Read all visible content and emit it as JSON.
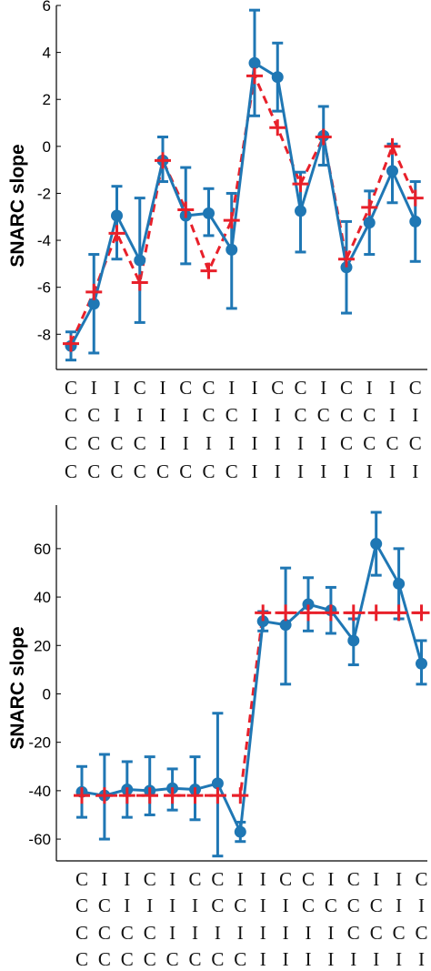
{
  "chart_data": [
    {
      "type": "line",
      "ylabel": "SNARC slope",
      "xlabel": "",
      "ylim": [
        -9.5,
        6
      ],
      "yticks": [
        6,
        4,
        2,
        0,
        -2,
        -4,
        -6,
        -8
      ],
      "x": [
        1,
        2,
        3,
        4,
        5,
        6,
        7,
        8,
        9,
        10,
        11,
        12,
        13,
        14,
        15,
        16
      ],
      "category_rows": [
        [
          "C",
          "I",
          "I",
          "C",
          "I",
          "C",
          "C",
          "I",
          "I",
          "C",
          "C",
          "I",
          "C",
          "I",
          "I",
          "C"
        ],
        [
          "C",
          "C",
          "I",
          "I",
          "I",
          "I",
          "C",
          "C",
          "I",
          "I",
          "C",
          "C",
          "C",
          "C",
          "I",
          "I"
        ],
        [
          "C",
          "C",
          "C",
          "C",
          "I",
          "I",
          "I",
          "I",
          "I",
          "I",
          "I",
          "I",
          "C",
          "C",
          "C",
          "C"
        ],
        [
          "C",
          "C",
          "C",
          "C",
          "C",
          "C",
          "C",
          "C",
          "I",
          "I",
          "I",
          "I",
          "I",
          "I",
          "I",
          "I"
        ]
      ],
      "series": [
        {
          "kind": "observed",
          "color": "#1f77b4",
          "style": "solid line with circle markers and error bars",
          "values": [
            -8.5,
            -6.7,
            -2.95,
            -4.85,
            -0.6,
            -2.95,
            -2.85,
            -4.4,
            3.55,
            2.95,
            -2.75,
            0.45,
            -5.15,
            -3.25,
            -1.05,
            -3.2
          ],
          "error_low": [
            -9.1,
            -8.8,
            -4.8,
            -7.5,
            -1.5,
            -5.0,
            -3.8,
            -6.9,
            1.3,
            1.5,
            -4.5,
            -0.8,
            -7.1,
            -4.6,
            -2.4,
            -4.9
          ],
          "error_high": [
            -7.9,
            -4.6,
            -1.7,
            -2.2,
            0.4,
            -0.9,
            -1.8,
            -2.0,
            5.8,
            4.4,
            -1.1,
            1.7,
            -3.2,
            -1.9,
            0.1,
            -1.5
          ]
        },
        {
          "kind": "model",
          "color": "#e8202a",
          "style": "dashed line with plus markers",
          "values": [
            -8.4,
            -6.2,
            -3.7,
            -5.8,
            -0.6,
            -2.7,
            -5.3,
            -3.15,
            3.0,
            0.8,
            -1.6,
            0.4,
            -4.8,
            -2.6,
            0.0,
            -2.2
          ]
        }
      ]
    },
    {
      "type": "line",
      "ylabel": "SNARC slope",
      "xlabel": "",
      "ylim": [
        -69,
        78
      ],
      "yticks": [
        60,
        40,
        20,
        0,
        -20,
        -40,
        -60
      ],
      "x": [
        1,
        2,
        3,
        4,
        5,
        6,
        7,
        8,
        9,
        10,
        11,
        12,
        13,
        14,
        15,
        16
      ],
      "category_rows": [
        [
          "C",
          "I",
          "I",
          "C",
          "I",
          "C",
          "C",
          "I",
          "I",
          "C",
          "C",
          "I",
          "C",
          "I",
          "I",
          "C"
        ],
        [
          "C",
          "C",
          "I",
          "I",
          "I",
          "I",
          "C",
          "C",
          "I",
          "I",
          "C",
          "C",
          "C",
          "C",
          "I",
          "I"
        ],
        [
          "C",
          "C",
          "C",
          "C",
          "I",
          "I",
          "I",
          "I",
          "I",
          "I",
          "I",
          "I",
          "C",
          "C",
          "C",
          "C"
        ],
        [
          "C",
          "C",
          "C",
          "C",
          "C",
          "C",
          "C",
          "C",
          "I",
          "I",
          "I",
          "I",
          "I",
          "I",
          "I",
          "I"
        ]
      ],
      "series": [
        {
          "kind": "observed",
          "color": "#1f77b4",
          "style": "solid line with circle markers and error bars",
          "values": [
            -40.5,
            -42,
            -39.5,
            -40,
            -39,
            -39.5,
            -37,
            -57,
            30,
            28.5,
            37,
            34.5,
            22,
            62,
            45.5,
            12.5
          ],
          "error_low": [
            -51,
            -60,
            -51,
            -50,
            -48,
            -52,
            -67,
            -61,
            26,
            4,
            26,
            25,
            12,
            49,
            31,
            4
          ],
          "error_high": [
            -30,
            -25,
            -28,
            -26,
            -31,
            -26,
            -8,
            -53,
            34,
            52,
            48,
            44,
            31,
            75,
            60,
            22
          ]
        },
        {
          "kind": "model",
          "color": "#e8202a",
          "style": "dashed line with plus markers",
          "values": [
            -42,
            -42,
            -42,
            -42,
            -42,
            -42,
            -42,
            -42,
            33.5,
            33.5,
            33.5,
            33.5,
            33.5,
            33.5,
            33.5,
            33.5
          ]
        }
      ]
    }
  ]
}
